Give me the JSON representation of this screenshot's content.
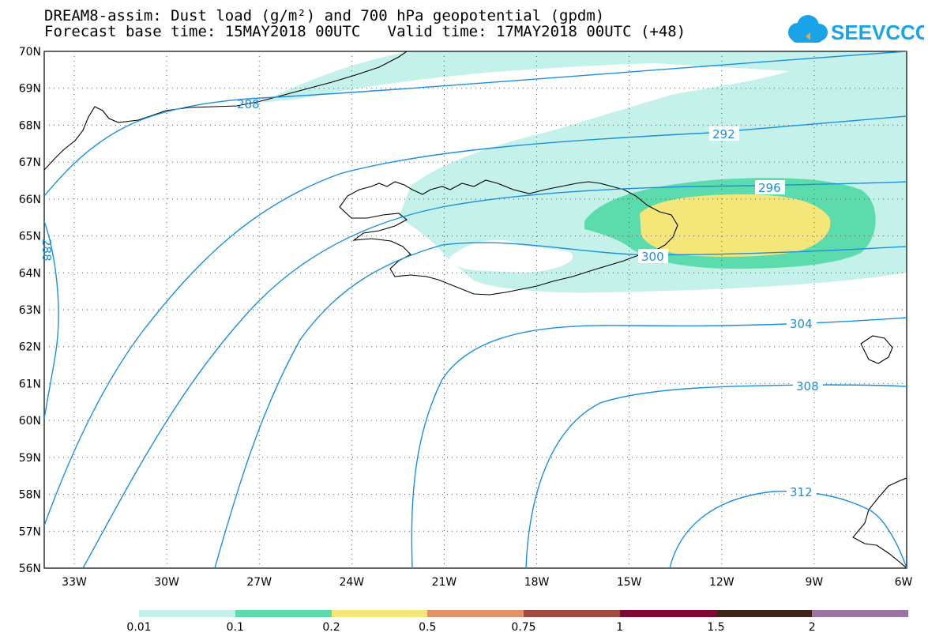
{
  "header": {
    "title_line1": "DREAM8-assim: Dust load (g/m²) and 700 hPa geopotential (gpdm)",
    "title_line2": "Forecast base time: 15MAY2018 00UTC   Valid time: 17MAY2018 00UTC (+48)"
  },
  "logo": {
    "text": "SEEVCCC",
    "icon": "cloud-icon",
    "color": "#19a3e8"
  },
  "map": {
    "lat_labels": [
      "70N",
      "69N",
      "68N",
      "67N",
      "66N",
      "65N",
      "64N",
      "63N",
      "62N",
      "61N",
      "60N",
      "59N",
      "58N",
      "57N",
      "56N"
    ],
    "lon_labels": [
      "33W",
      "30W",
      "27W",
      "24W",
      "21W",
      "18W",
      "15W",
      "12W",
      "9W",
      "6W"
    ],
    "contour_labels": [
      "288",
      "288",
      "292",
      "296",
      "300",
      "304",
      "308",
      "312"
    ],
    "contour_color": "#1a8fe0",
    "coast_color": "#000000"
  },
  "colorbar": {
    "colors": [
      "#c4f1ea",
      "#5cdcac",
      "#f5e67a",
      "#e6906a",
      "#a24a41",
      "#800933",
      "#3d2618",
      "#9a74a3"
    ],
    "labels": [
      "0.01",
      "0.1",
      "0.2",
      "0.5",
      "0.75",
      "1",
      "1.5",
      "2"
    ]
  }
}
